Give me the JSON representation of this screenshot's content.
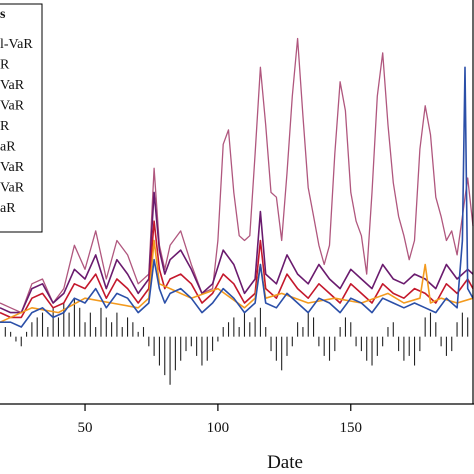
{
  "chart_data": {
    "type": "line",
    "xlabel": "Date",
    "ylabel": "",
    "xlim": [
      18,
      196
    ],
    "ylim": [
      -0.14,
      0.7
    ],
    "x_ticks": [
      {
        "value": 50,
        "label": "50"
      },
      {
        "value": 100,
        "label": "100"
      },
      {
        "value": 150,
        "label": "150"
      }
    ],
    "legend": {
      "placement": "top-left",
      "title": "s",
      "entries": [
        "l-VaR",
        "R",
        "VaR",
        "VaR",
        "R",
        "aR",
        "VaR",
        "VaR",
        "aR"
      ]
    },
    "colors": {
      "returns": "#222222",
      "band_lower": "#2b4fa8",
      "band_upper": "#c4182c",
      "orange": "#f39a1e",
      "purple": "#6a1b6e",
      "mauve": "#b0577e",
      "spike_blue": "#1f6fb8"
    },
    "series": [
      {
        "key": "mauve",
        "x": [
          18,
          22,
          26,
          30,
          34,
          38,
          42,
          46,
          50,
          54,
          58,
          62,
          66,
          70,
          74,
          76,
          78,
          80,
          82,
          86,
          90,
          94,
          98,
          100,
          102,
          104,
          106,
          108,
          110,
          112,
          114,
          116,
          118,
          120,
          122,
          124,
          126,
          128,
          130,
          132,
          134,
          136,
          138,
          140,
          142,
          144,
          146,
          148,
          150,
          152,
          154,
          156,
          158,
          160,
          162,
          164,
          166,
          168,
          170,
          172,
          174,
          176,
          178,
          180,
          182,
          184,
          186,
          188,
          190,
          192,
          194,
          196
        ],
        "values": [
          0.07,
          0.06,
          0.05,
          0.11,
          0.12,
          0.07,
          0.1,
          0.19,
          0.14,
          0.22,
          0.12,
          0.2,
          0.17,
          0.11,
          0.13,
          0.35,
          0.19,
          0.14,
          0.19,
          0.22,
          0.15,
          0.09,
          0.1,
          0.2,
          0.4,
          0.43,
          0.3,
          0.21,
          0.2,
          0.21,
          0.38,
          0.56,
          0.44,
          0.3,
          0.29,
          0.2,
          0.34,
          0.5,
          0.62,
          0.46,
          0.31,
          0.25,
          0.19,
          0.15,
          0.19,
          0.38,
          0.53,
          0.47,
          0.3,
          0.24,
          0.21,
          0.13,
          0.3,
          0.5,
          0.59,
          0.44,
          0.32,
          0.25,
          0.21,
          0.16,
          0.2,
          0.39,
          0.48,
          0.42,
          0.29,
          0.25,
          0.2,
          0.22,
          0.17,
          0.25,
          0.33,
          0.23
        ]
      },
      {
        "key": "purple",
        "x": [
          18,
          22,
          26,
          30,
          34,
          38,
          42,
          46,
          50,
          54,
          58,
          62,
          66,
          70,
          74,
          76,
          78,
          80,
          82,
          86,
          90,
          94,
          98,
          102,
          106,
          110,
          114,
          116,
          118,
          122,
          126,
          130,
          134,
          138,
          142,
          146,
          150,
          154,
          158,
          162,
          166,
          170,
          174,
          178,
          182,
          186,
          190,
          194,
          196
        ],
        "values": [
          0.06,
          0.05,
          0.05,
          0.1,
          0.11,
          0.07,
          0.09,
          0.14,
          0.12,
          0.17,
          0.1,
          0.16,
          0.13,
          0.09,
          0.12,
          0.3,
          0.18,
          0.13,
          0.16,
          0.18,
          0.14,
          0.09,
          0.11,
          0.18,
          0.15,
          0.09,
          0.12,
          0.26,
          0.13,
          0.11,
          0.17,
          0.13,
          0.11,
          0.15,
          0.12,
          0.1,
          0.14,
          0.12,
          0.1,
          0.15,
          0.12,
          0.11,
          0.13,
          0.12,
          0.1,
          0.15,
          0.12,
          0.14,
          0.13
        ]
      },
      {
        "key": "band_upper",
        "x": [
          18,
          22,
          26,
          30,
          34,
          38,
          42,
          46,
          50,
          54,
          58,
          62,
          66,
          70,
          74,
          76,
          78,
          80,
          82,
          86,
          90,
          94,
          98,
          102,
          106,
          110,
          114,
          116,
          118,
          122,
          126,
          130,
          134,
          138,
          142,
          146,
          150,
          154,
          158,
          162,
          166,
          170,
          174,
          178,
          182,
          186,
          190,
          194,
          196
        ],
        "values": [
          0.05,
          0.04,
          0.04,
          0.08,
          0.09,
          0.06,
          0.07,
          0.11,
          0.1,
          0.13,
          0.08,
          0.12,
          0.1,
          0.07,
          0.1,
          0.24,
          0.14,
          0.1,
          0.12,
          0.13,
          0.11,
          0.07,
          0.09,
          0.13,
          0.11,
          0.07,
          0.09,
          0.2,
          0.1,
          0.08,
          0.13,
          0.1,
          0.08,
          0.11,
          0.09,
          0.07,
          0.11,
          0.09,
          0.07,
          0.11,
          0.09,
          0.08,
          0.1,
          0.09,
          0.07,
          0.11,
          0.09,
          0.12,
          0.1
        ]
      },
      {
        "key": "orange",
        "x": [
          18,
          30,
          40,
          50,
          60,
          70,
          74,
          76,
          78,
          82,
          90,
          100,
          110,
          114,
          116,
          118,
          124,
          134,
          144,
          154,
          164,
          170,
          176,
          178,
          180,
          184,
          190,
          196
        ],
        "values": [
          0.03,
          0.06,
          0.05,
          0.08,
          0.07,
          0.06,
          0.08,
          0.2,
          0.11,
          0.1,
          0.08,
          0.1,
          0.06,
          0.08,
          0.15,
          0.08,
          0.09,
          0.07,
          0.08,
          0.07,
          0.09,
          0.07,
          0.08,
          0.15,
          0.07,
          0.08,
          0.07,
          0.08
        ]
      },
      {
        "key": "band_lower",
        "x": [
          18,
          22,
          26,
          30,
          34,
          38,
          42,
          46,
          50,
          54,
          58,
          62,
          66,
          70,
          74,
          76,
          78,
          80,
          82,
          86,
          90,
          94,
          98,
          102,
          106,
          110,
          114,
          116,
          118,
          122,
          126,
          130,
          134,
          138,
          142,
          146,
          150,
          154,
          158,
          162,
          166,
          170,
          174,
          178,
          182,
          186,
          190,
          192,
          193,
          194,
          196
        ],
        "values": [
          0.03,
          0.03,
          0.02,
          0.05,
          0.06,
          0.04,
          0.05,
          0.08,
          0.07,
          0.1,
          0.06,
          0.09,
          0.08,
          0.05,
          0.07,
          0.16,
          0.1,
          0.07,
          0.09,
          0.1,
          0.08,
          0.05,
          0.07,
          0.1,
          0.08,
          0.05,
          0.07,
          0.15,
          0.07,
          0.06,
          0.09,
          0.07,
          0.05,
          0.08,
          0.07,
          0.05,
          0.08,
          0.07,
          0.05,
          0.08,
          0.07,
          0.06,
          0.07,
          0.06,
          0.05,
          0.08,
          0.06,
          0.2,
          0.56,
          0.1,
          0.08
        ]
      }
    ],
    "returns": {
      "x": [
        20,
        22,
        24,
        26,
        28,
        30,
        32,
        34,
        36,
        38,
        40,
        42,
        44,
        46,
        48,
        50,
        52,
        54,
        56,
        58,
        60,
        62,
        64,
        66,
        68,
        70,
        72,
        74,
        76,
        78,
        80,
        82,
        84,
        86,
        88,
        90,
        92,
        94,
        96,
        98,
        100,
        102,
        104,
        106,
        108,
        110,
        112,
        114,
        116,
        118,
        120,
        122,
        124,
        126,
        128,
        130,
        132,
        134,
        136,
        138,
        140,
        142,
        144,
        146,
        148,
        150,
        152,
        154,
        156,
        158,
        160,
        162,
        164,
        166,
        168,
        170,
        172,
        174,
        176,
        178,
        180,
        182,
        184,
        186,
        188,
        190,
        192,
        194
      ],
      "values": [
        0.02,
        0.01,
        -0.01,
        -0.02,
        0.01,
        0.03,
        0.04,
        0.05,
        0.02,
        0.06,
        0.04,
        0.07,
        0.05,
        0.08,
        0.06,
        0.03,
        0.05,
        0.02,
        0.06,
        0.04,
        0.03,
        0.05,
        0.02,
        0.04,
        0.03,
        0.01,
        0.02,
        -0.02,
        -0.04,
        -0.06,
        -0.08,
        -0.1,
        -0.07,
        -0.05,
        -0.03,
        -0.02,
        -0.04,
        -0.06,
        -0.05,
        -0.03,
        -0.01,
        0.02,
        0.03,
        0.04,
        0.02,
        0.05,
        0.03,
        0.04,
        0.06,
        0.02,
        -0.03,
        -0.05,
        -0.07,
        -0.04,
        -0.02,
        0.03,
        0.02,
        0.05,
        0.04,
        -0.02,
        -0.04,
        -0.05,
        -0.03,
        0.02,
        0.04,
        0.03,
        -0.02,
        -0.03,
        -0.05,
        -0.06,
        -0.04,
        -0.02,
        0.02,
        0.03,
        -0.03,
        -0.05,
        -0.04,
        -0.06,
        -0.03,
        0.04,
        0.05,
        0.03,
        -0.02,
        -0.04,
        -0.03,
        0.03,
        0.05,
        0.04
      ]
    }
  }
}
